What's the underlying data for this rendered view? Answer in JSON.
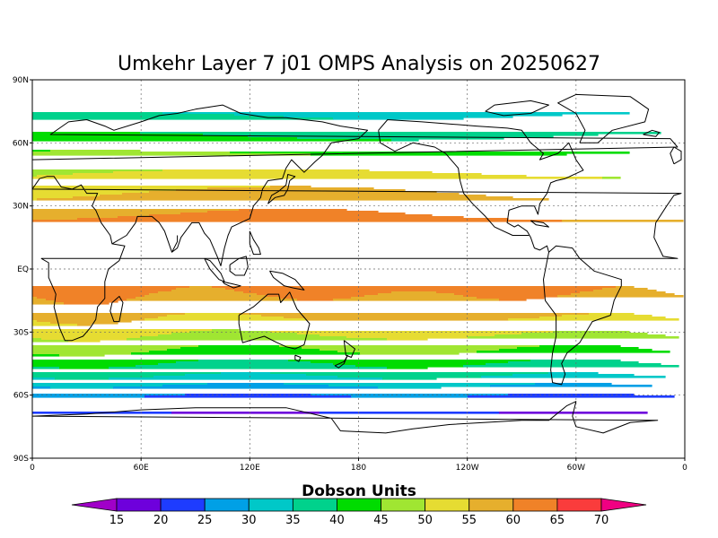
{
  "title": "Umkehr Layer 7 j01 OMPS Analysis on 20250627",
  "lat_ticks": [
    "90N",
    "60N",
    "30N",
    "EQ",
    "30S",
    "60S",
    "90S"
  ],
  "lon_ticks": [
    "0",
    "60E",
    "120E",
    "180",
    "120W",
    "60W",
    "0"
  ],
  "colorbar": {
    "title": "Dobson Units",
    "labels": [
      "15",
      "20",
      "25",
      "30",
      "35",
      "40",
      "45",
      "50",
      "55",
      "60",
      "65",
      "70"
    ],
    "colors": [
      "#a000c8",
      "#6e00dc",
      "#1e3cff",
      "#00a0e6",
      "#00c8c8",
      "#00d28c",
      "#00dc00",
      "#a0e632",
      "#e6dc32",
      "#e6af2d",
      "#f08228",
      "#fa3c3c",
      "#f00082"
    ]
  },
  "chart_data": {
    "type": "heatmap",
    "title": "Umkehr Layer 7 j01 OMPS Analysis on 20250627",
    "variable": "Dobson Units",
    "xlim": [
      0,
      360
    ],
    "ylim": [
      -90,
      90
    ],
    "levels": [
      15,
      20,
      25,
      30,
      35,
      40,
      45,
      50,
      55,
      60,
      65,
      70
    ],
    "latitudes": [
      90,
      80,
      70,
      60,
      50,
      40,
      30,
      20,
      10,
      0,
      -10,
      -20,
      -30,
      -40,
      -50,
      -60,
      -70,
      -80,
      -90
    ],
    "zonal_values": [
      32,
      33,
      36,
      42,
      48,
      53,
      58,
      62,
      63,
      63,
      61,
      57,
      51,
      44,
      36,
      25,
      19,
      18,
      18
    ]
  }
}
